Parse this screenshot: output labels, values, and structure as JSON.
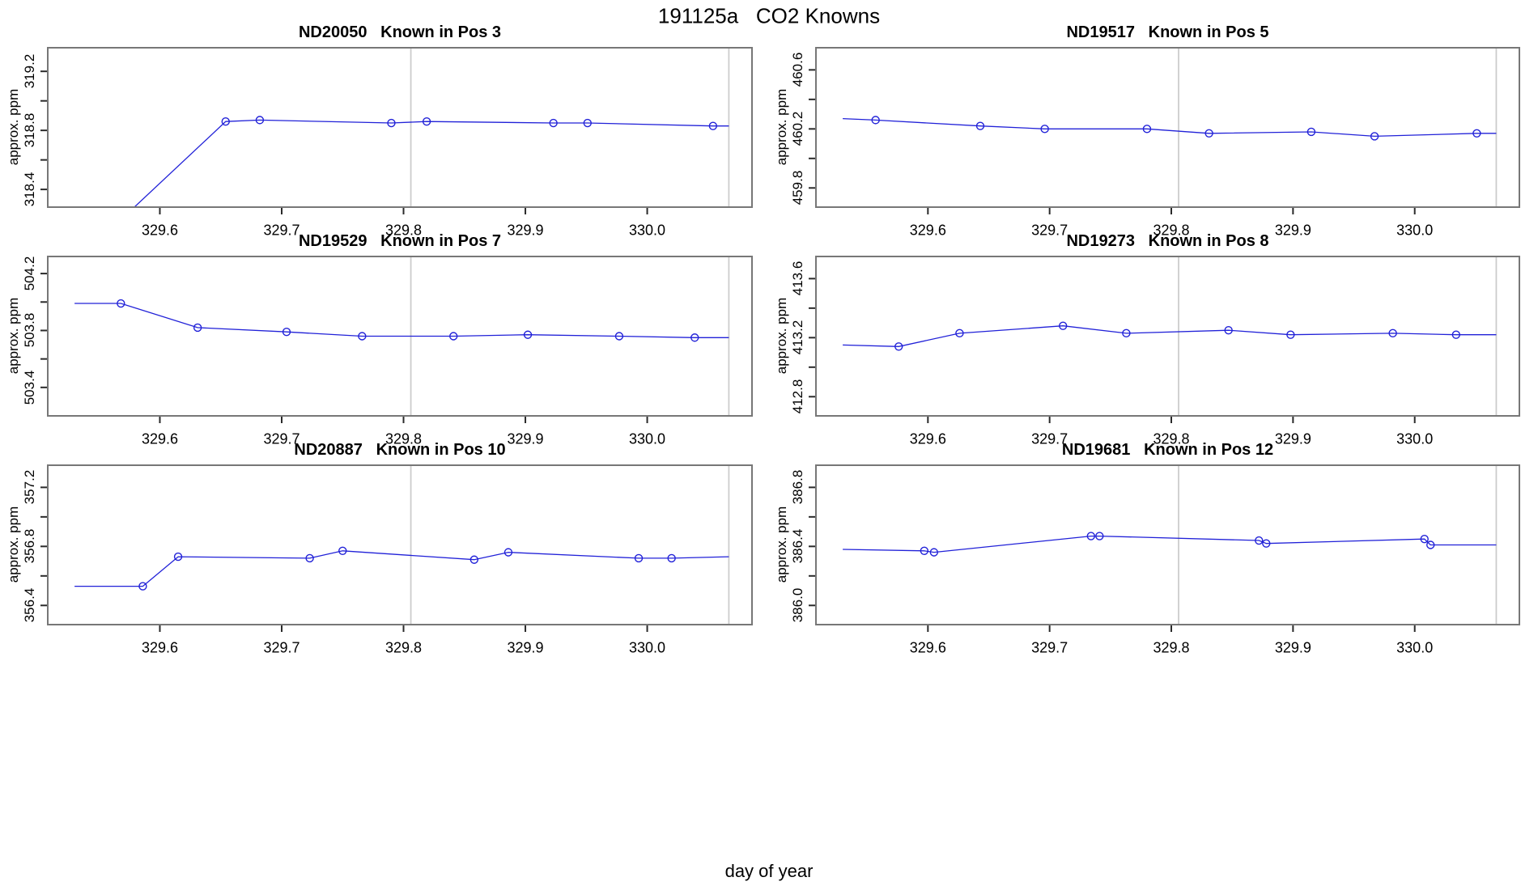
{
  "chart_data": {
    "type": "line",
    "title": "191125a   CO2 Knowns",
    "xlabel": "day of year",
    "xlim": [
      329.508,
      330.086
    ],
    "xticks": [
      329.6,
      329.7,
      329.8,
      329.9,
      330.0
    ],
    "xtick_labels": [
      "329.6",
      "329.7",
      "329.8",
      "329.9",
      "330.0"
    ],
    "vlines": [
      329.806,
      330.067
    ],
    "colors": {
      "line": "#2121d8",
      "marker": "#2121d8",
      "grid": "#cccccc",
      "box": "#777777",
      "tick": "#2a2a2a",
      "text": "#000000",
      "background": "#ffffff"
    },
    "panels": [
      {
        "title": "ND20050   Known in Pos 3",
        "ylabel": "approx. ppm",
        "ylim": [
          318.28,
          319.36
        ],
        "yticks": [
          318.4,
          318.6,
          318.8,
          319.0,
          319.2
        ],
        "labeled_yticks": [
          319.2,
          318.8,
          318.4
        ],
        "ytick_labels": [
          "319.2",
          "318.8",
          "318.4"
        ],
        "x": [
          329.654,
          329.682,
          329.79,
          329.819,
          329.923,
          329.951,
          330.054
        ],
        "y": [
          318.86,
          318.87,
          318.85,
          318.86,
          318.85,
          318.85,
          318.83
        ],
        "line_pre": [
          329.53,
          317.9
        ],
        "line_post": [
          330.067,
          318.83
        ]
      },
      {
        "title": "ND19517   Known in Pos 5",
        "ylabel": "approx. ppm",
        "ylim": [
          459.67,
          460.75
        ],
        "yticks": [
          459.8,
          460.0,
          460.2,
          460.4,
          460.6
        ],
        "labeled_yticks": [
          460.6,
          460.2,
          459.8
        ],
        "ytick_labels": [
          "460.6",
          "460.2",
          "459.8"
        ],
        "x": [
          329.557,
          329.643,
          329.696,
          329.78,
          329.831,
          329.915,
          329.967,
          330.051
        ],
        "y": [
          460.26,
          460.22,
          460.2,
          460.2,
          460.17,
          460.18,
          460.15,
          460.17
        ],
        "line_pre": [
          329.53,
          460.27
        ],
        "line_post": [
          330.067,
          460.17
        ]
      },
      {
        "title": "ND19529   Known in Pos 7",
        "ylabel": "approx. ppm",
        "ylim": [
          503.2,
          504.32
        ],
        "yticks": [
          503.4,
          503.6,
          503.8,
          504.0,
          504.2
        ],
        "labeled_yticks": [
          504.2,
          503.8,
          503.4
        ],
        "ytick_labels": [
          "504.2",
          "503.8",
          "503.4"
        ],
        "x": [
          329.568,
          329.631,
          329.704,
          329.766,
          329.841,
          329.902,
          329.977,
          330.039
        ],
        "y": [
          503.99,
          503.82,
          503.79,
          503.76,
          503.76,
          503.77,
          503.76,
          503.75
        ],
        "line_pre": [
          329.53,
          503.99
        ],
        "line_post": [
          330.067,
          503.75
        ]
      },
      {
        "title": "ND19273   Known in Pos 8",
        "ylabel": "approx. ppm",
        "ylim": [
          412.67,
          413.75
        ],
        "yticks": [
          412.8,
          413.0,
          413.2,
          413.4,
          413.6
        ],
        "labeled_yticks": [
          413.6,
          413.2,
          412.8
        ],
        "ytick_labels": [
          "413.6",
          "413.2",
          "412.8"
        ],
        "x": [
          329.576,
          329.626,
          329.711,
          329.763,
          329.847,
          329.898,
          329.982,
          330.034
        ],
        "y": [
          413.14,
          413.23,
          413.28,
          413.23,
          413.25,
          413.22,
          413.23,
          413.22
        ],
        "line_pre": [
          329.53,
          413.15
        ],
        "line_post": [
          330.067,
          413.22
        ]
      },
      {
        "title": "ND20887   Known in Pos 10",
        "ylabel": "approx. ppm",
        "ylim": [
          356.27,
          357.35
        ],
        "yticks": [
          356.4,
          356.6,
          356.8,
          357.0,
          357.2
        ],
        "labeled_yticks": [
          357.2,
          356.8,
          356.4
        ],
        "ytick_labels": [
          "357.2",
          "356.8",
          "356.4"
        ],
        "x": [
          329.586,
          329.615,
          329.723,
          329.75,
          329.858,
          329.886,
          329.993,
          330.02
        ],
        "y": [
          356.53,
          356.73,
          356.72,
          356.77,
          356.71,
          356.76,
          356.72,
          356.72
        ],
        "line_pre": [
          329.53,
          356.53
        ],
        "line_post": [
          330.067,
          356.73
        ]
      },
      {
        "title": "ND19681   Known in Pos 12",
        "ylabel": "approx. ppm",
        "ylim": [
          385.87,
          386.95
        ],
        "yticks": [
          386.0,
          386.2,
          386.4,
          386.6,
          386.8
        ],
        "labeled_yticks": [
          386.8,
          386.4,
          386.0
        ],
        "ytick_labels": [
          "386.8",
          "386.4",
          "386.0"
        ],
        "x": [
          329.597,
          329.605,
          329.734,
          329.741,
          329.872,
          329.878,
          330.008,
          330.013
        ],
        "y": [
          386.37,
          386.36,
          386.47,
          386.47,
          386.44,
          386.42,
          386.45,
          386.41
        ],
        "line_pre": [
          329.53,
          386.38
        ],
        "line_post": [
          330.067,
          386.41
        ]
      }
    ]
  }
}
